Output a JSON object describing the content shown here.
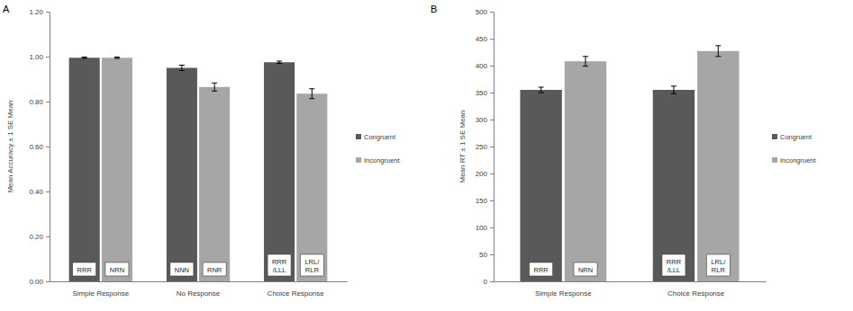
{
  "chart_data": [
    {
      "type": "bar",
      "title": "A",
      "y_label": "Mean Accuracy ± 1 SE Mean",
      "categories": [
        "Simple Response",
        "No Response",
        "Choice Response"
      ],
      "series": [
        {
          "name": "Congruent",
          "color": "#595959",
          "values": [
            0.995,
            0.95,
            0.975
          ],
          "errors": [
            0.003,
            0.012,
            0.005
          ],
          "labels": [
            "RRR",
            "NNN",
            "RRR\n/LLL"
          ]
        },
        {
          "name": "Incongruent",
          "color": "#a6a6a6",
          "values": [
            0.995,
            0.865,
            0.835
          ],
          "errors": [
            0.003,
            0.018,
            0.022
          ],
          "labels": [
            "NRN",
            "RNR",
            "LRL/\nRLR"
          ]
        }
      ],
      "ylim": [
        0,
        1.2
      ],
      "yticks": [
        {
          "value": 0,
          "label": "0.00"
        },
        {
          "value": 0.2,
          "label": "0.20"
        },
        {
          "value": 0.4,
          "label": "0.40"
        },
        {
          "value": 0.6,
          "label": "0.60"
        },
        {
          "value": 0.8,
          "label": "0.80"
        },
        {
          "value": 1.0,
          "label": "1.00"
        },
        {
          "value": 1.2,
          "label": "1.20"
        }
      ],
      "grid": false,
      "legend": "right"
    },
    {
      "type": "bar",
      "title": "B",
      "y_label": "Mean RT ± 1 SE Mean",
      "categories": [
        "Simple Response",
        "Choice Response"
      ],
      "series": [
        {
          "name": "Congruent",
          "color": "#595959",
          "values": [
            355,
            355
          ],
          "errors": [
            5,
            7
          ],
          "labels": [
            "RRR",
            "RRR\n/LLL"
          ]
        },
        {
          "name": "Incongruent",
          "color": "#a6a6a6",
          "values": [
            408,
            427
          ],
          "errors": [
            9,
            10
          ],
          "labels": [
            "NRN",
            "LRL/\nRLR"
          ]
        }
      ],
      "ylim": [
        0,
        500
      ],
      "yticks": [
        0,
        50,
        100,
        150,
        200,
        250,
        300,
        350,
        400,
        450,
        500
      ],
      "grid": false,
      "legend": "right"
    }
  ]
}
